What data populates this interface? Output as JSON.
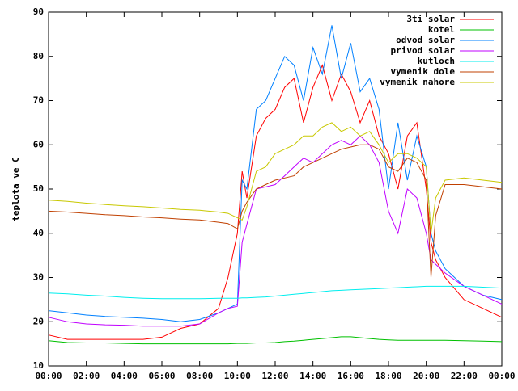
{
  "chart_data": {
    "type": "line",
    "y_label": "teplota ve C",
    "x": [
      0,
      1,
      2,
      3,
      4,
      5,
      6,
      7,
      8,
      9,
      9.5,
      10,
      10.25,
      10.5,
      11,
      11.5,
      12,
      12.5,
      13,
      13.5,
      14,
      14.5,
      15,
      15.5,
      16,
      16.5,
      17,
      17.5,
      18,
      18.5,
      19,
      19.5,
      20,
      20.25,
      20.5,
      21,
      22,
      23,
      24
    ],
    "xlim": [
      0,
      24
    ],
    "xticks": [
      {
        "value": 0,
        "label": "00:00"
      },
      {
        "value": 2,
        "label": "02:00"
      },
      {
        "value": 4,
        "label": "04:00"
      },
      {
        "value": 6,
        "label": "06:00"
      },
      {
        "value": 8,
        "label": "08:00"
      },
      {
        "value": 10,
        "label": "10:00"
      },
      {
        "value": 12,
        "label": "12:00"
      },
      {
        "value": 14,
        "label": "14:00"
      },
      {
        "value": 16,
        "label": "16:00"
      },
      {
        "value": 18,
        "label": "18:00"
      },
      {
        "value": 20,
        "label": "20:00"
      },
      {
        "value": 22,
        "label": "22:00"
      },
      {
        "value": 24,
        "label": "00:00"
      }
    ],
    "ylim": [
      10,
      90
    ],
    "yticks": [
      10,
      20,
      30,
      40,
      50,
      60,
      70,
      80,
      90
    ],
    "legend": "top-right",
    "series": [
      {
        "name": "3ti solar",
        "color": "#ff0000",
        "values": [
          17,
          16,
          16,
          16,
          16,
          16,
          16.5,
          18.5,
          19.5,
          23,
          30,
          40,
          54,
          48,
          62,
          66,
          68,
          73,
          75,
          65,
          73,
          78,
          70,
          76,
          72,
          65,
          70,
          62,
          58,
          50,
          62,
          65,
          50,
          38,
          34,
          30,
          25,
          23,
          21
        ]
      },
      {
        "name": "kotel",
        "color": "#00c000",
        "values": [
          15.7,
          15.3,
          15.2,
          15.2,
          15.1,
          15,
          15,
          15,
          15,
          15,
          15,
          15.1,
          15.1,
          15.1,
          15.2,
          15.2,
          15.3,
          15.5,
          15.6,
          15.8,
          16,
          16.2,
          16.4,
          16.6,
          16.6,
          16.4,
          16.2,
          16,
          15.9,
          15.8,
          15.8,
          15.8,
          15.8,
          15.8,
          15.8,
          15.8,
          15.7,
          15.6,
          15.5
        ]
      },
      {
        "name": "odvod solar",
        "color": "#0080ff",
        "values": [
          22.5,
          22,
          21.5,
          21.2,
          21,
          20.8,
          20.5,
          20,
          20.5,
          22,
          23,
          24,
          52,
          50,
          68,
          70,
          75,
          80,
          78,
          70,
          82,
          76,
          87,
          75,
          83,
          72,
          75,
          68,
          50,
          65,
          52,
          62,
          55,
          40,
          36,
          32,
          28,
          26,
          25
        ]
      },
      {
        "name": "privod solar",
        "color": "#c000ff",
        "values": [
          21,
          20,
          19.5,
          19.3,
          19.2,
          19,
          19,
          19,
          19.5,
          22,
          23,
          23.5,
          38,
          42,
          50,
          50.5,
          51,
          53,
          55,
          57,
          56,
          58,
          60,
          61,
          60,
          62,
          60,
          56,
          45,
          40,
          50,
          48,
          40,
          34,
          33,
          31,
          28,
          26,
          24
        ]
      },
      {
        "name": "kutloch",
        "color": "#00eeee",
        "values": [
          26.5,
          26.3,
          26,
          25.8,
          25.5,
          25.3,
          25.2,
          25.2,
          25.2,
          25.3,
          25.3,
          25.3,
          25.4,
          25.4,
          25.5,
          25.6,
          25.8,
          26,
          26.2,
          26.4,
          26.6,
          26.8,
          27,
          27.1,
          27.2,
          27.3,
          27.4,
          27.5,
          27.6,
          27.7,
          27.8,
          27.9,
          28,
          28,
          28,
          28,
          28,
          27.8,
          27.6
        ]
      },
      {
        "name": "vymenik dole",
        "color": "#c04000",
        "values": [
          45,
          44.8,
          44.5,
          44.2,
          44,
          43.7,
          43.5,
          43.2,
          43,
          42.5,
          42.2,
          41,
          45,
          47,
          50,
          51,
          52,
          52.5,
          53,
          55,
          56,
          57,
          58,
          59,
          59.5,
          60,
          60,
          59,
          55,
          54,
          57,
          56,
          52,
          30,
          44,
          51,
          51,
          50.5,
          50
        ]
      },
      {
        "name": "vymenik nahore",
        "color": "#c8c800",
        "values": [
          47.5,
          47.2,
          46.8,
          46.5,
          46.2,
          46,
          45.7,
          45.4,
          45.2,
          44.8,
          44.5,
          43.5,
          43,
          46,
          54,
          55,
          58,
          59,
          60,
          62,
          62,
          64,
          65,
          63,
          64,
          62,
          63,
          60,
          56,
          58,
          58,
          57,
          55,
          40,
          48,
          52,
          52.5,
          52,
          51.5
        ]
      }
    ]
  }
}
